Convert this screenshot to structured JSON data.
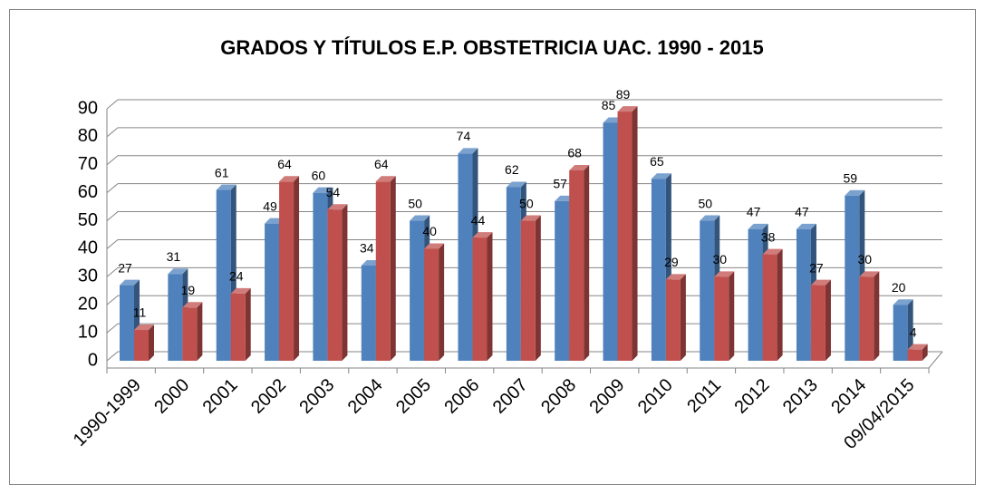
{
  "chart_data": {
    "type": "bar3d",
    "title": "GRADOS Y TÍTULOS E.P. OBSTETRICIA UAC. 1990 - 2015",
    "categories": [
      "1990-1999",
      "2000",
      "2001",
      "2002",
      "2003",
      "2004",
      "2005",
      "2006",
      "2007",
      "2008",
      "2009",
      "2010",
      "2011",
      "2012",
      "2013",
      "2014",
      "09/04/2015"
    ],
    "series": [
      {
        "color": "#4f81bd",
        "values": [
          27,
          31,
          61,
          49,
          60,
          34,
          50,
          74,
          62,
          57,
          85,
          65,
          50,
          47,
          47,
          59,
          20
        ]
      },
      {
        "color": "#c0504d",
        "values": [
          11,
          19,
          24,
          64,
          54,
          64,
          40,
          44,
          50,
          68,
          89,
          29,
          30,
          38,
          27,
          30,
          4
        ]
      }
    ],
    "ylim": [
      0,
      90
    ],
    "yticks": [
      0,
      10,
      20,
      30,
      40,
      50,
      60,
      70,
      80,
      90
    ],
    "grid": true
  }
}
